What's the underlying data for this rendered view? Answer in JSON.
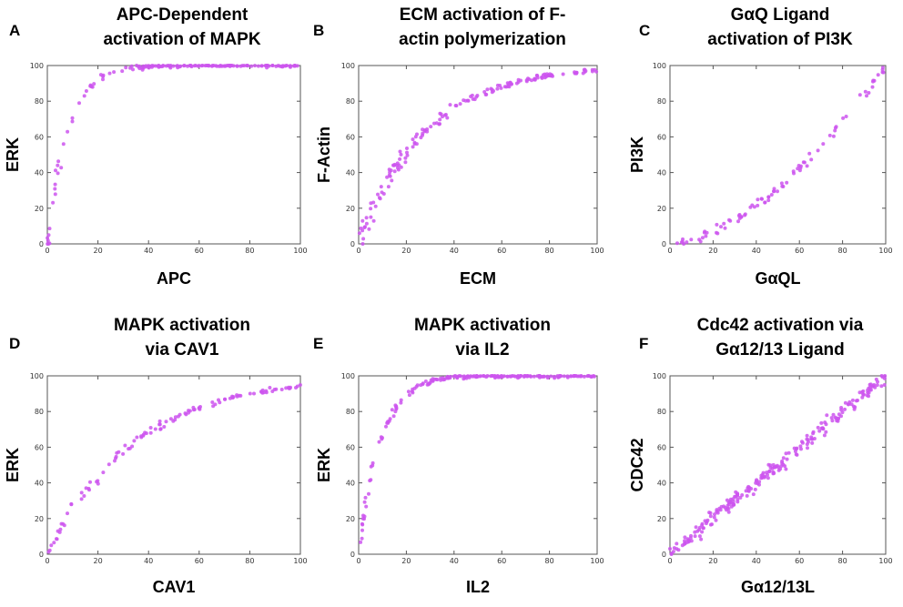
{
  "colors": {
    "point": "#cc55ee",
    "axis": "#555555",
    "text": "#000000"
  },
  "chart_data": [
    {
      "panel": "A",
      "type": "scatter",
      "title": [
        "APC-Dependent",
        "activation of MAPK"
      ],
      "xlabel": "APC",
      "ylabel": "ERK",
      "xlim": [
        0,
        100
      ],
      "ylim": [
        0,
        100
      ],
      "xticks": [
        0,
        20,
        40,
        60,
        80,
        100
      ],
      "yticks": [
        0,
        20,
        40,
        60,
        80,
        100
      ],
      "curve": "sat",
      "k": 8,
      "noise": 7,
      "n": 110,
      "dense_tail": true,
      "series": [
        {
          "name": "ERK vs APC"
        }
      ]
    },
    {
      "panel": "B",
      "type": "scatter",
      "title": [
        "ECM activation of F-",
        "actin polymerization"
      ],
      "xlabel": "ECM",
      "ylabel": "F-Actin",
      "xlim": [
        0,
        100
      ],
      "ylim": [
        0,
        100
      ],
      "xticks": [
        0,
        20,
        40,
        60,
        80,
        100
      ],
      "yticks": [
        0,
        20,
        40,
        60,
        80,
        100
      ],
      "curve": "sat",
      "k": 28,
      "noise": 6,
      "n": 160,
      "dense_tail": false,
      "series": [
        {
          "name": "F-Actin vs ECM"
        }
      ]
    },
    {
      "panel": "C",
      "type": "scatter",
      "title": [
        "GαQ Ligand",
        "activation of PI3K"
      ],
      "xlabel": "GαQL",
      "ylabel": "PI3K",
      "xlim": [
        0,
        100
      ],
      "ylim": [
        0,
        100
      ],
      "xticks": [
        0,
        20,
        40,
        60,
        80,
        100
      ],
      "yticks": [
        0,
        20,
        40,
        60,
        80,
        100
      ],
      "curve": "pow",
      "p": 1.7,
      "noise": 2,
      "n": 85,
      "dense_tail": false,
      "series": [
        {
          "name": "PI3K vs GαQL"
        }
      ]
    },
    {
      "panel": "D",
      "type": "scatter",
      "title": [
        "MAPK activation",
        "via CAV1"
      ],
      "xlabel": "CAV1",
      "ylabel": "ERK",
      "xlim": [
        0,
        100
      ],
      "ylim": [
        0,
        100
      ],
      "xticks": [
        0,
        20,
        40,
        60,
        80,
        100
      ],
      "yticks": [
        0,
        20,
        40,
        60,
        80,
        100
      ],
      "curve": "sat",
      "k": 35,
      "noise": 4,
      "n": 110,
      "dense_tail": false,
      "series": [
        {
          "name": "ERK vs CAV1"
        }
      ]
    },
    {
      "panel": "E",
      "type": "scatter",
      "title": [
        "MAPK activation",
        "via IL2"
      ],
      "xlabel": "IL2",
      "ylabel": "ERK",
      "xlim": [
        0,
        100
      ],
      "ylim": [
        0,
        100
      ],
      "xticks": [
        0,
        20,
        40,
        60,
        80,
        100
      ],
      "yticks": [
        0,
        20,
        40,
        60,
        80,
        100
      ],
      "curve": "sat",
      "k": 9,
      "noise": 7,
      "n": 140,
      "dense_tail": true,
      "series": [
        {
          "name": "ERK vs IL2"
        }
      ]
    },
    {
      "panel": "F",
      "type": "scatter",
      "title": [
        "Cdc42 activation via",
        "Gα12/13 Ligand"
      ],
      "xlabel": "Gα12/13L",
      "ylabel": "CDC42",
      "xlim": [
        0,
        100
      ],
      "ylim": [
        0,
        100
      ],
      "xticks": [
        0,
        20,
        40,
        60,
        80,
        100
      ],
      "yticks": [
        0,
        20,
        40,
        60,
        80,
        100
      ],
      "curve": "lin",
      "noise": 3,
      "n": 230,
      "dense_tail": false,
      "series": [
        {
          "name": "CDC42 vs Gα12/13L"
        }
      ]
    }
  ]
}
